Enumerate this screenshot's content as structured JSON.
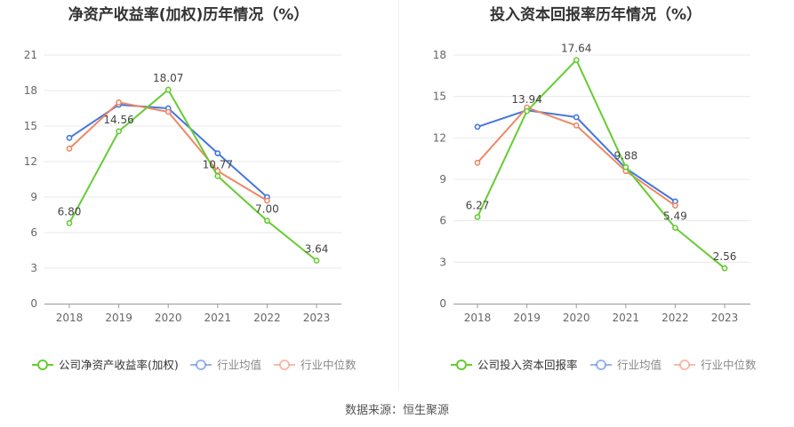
{
  "chart_data": [
    {
      "type": "line",
      "title": "净资产收益率(加权)历年情况（%）",
      "categories": [
        "2018",
        "2019",
        "2020",
        "2021",
        "2022",
        "2023"
      ],
      "ylim": [
        0,
        21
      ],
      "yticks": [
        0,
        3,
        6,
        9,
        12,
        15,
        18,
        21
      ],
      "grid": true,
      "legend_position": "bottom",
      "series": [
        {
          "name": "公司净资产收益率(加权)",
          "color": "#66cc33",
          "labeled": true,
          "values": [
            6.8,
            14.56,
            18.07,
            10.77,
            7.0,
            3.64
          ],
          "labels": [
            "6.80",
            "14.56",
            "18.07",
            "10.77",
            "7.00",
            "3.64"
          ]
        },
        {
          "name": "行业均值",
          "color": "#4477dd",
          "labeled": false,
          "values": [
            14.0,
            16.8,
            16.5,
            12.7,
            9.0,
            null
          ]
        },
        {
          "name": "行业中位数",
          "color": "#ee8866",
          "labeled": false,
          "values": [
            13.1,
            17.0,
            16.2,
            11.2,
            8.7,
            null
          ]
        }
      ]
    },
    {
      "type": "line",
      "title": "投入资本回报率历年情况（%）",
      "categories": [
        "2018",
        "2019",
        "2020",
        "2021",
        "2022",
        "2023"
      ],
      "ylim": [
        0,
        18
      ],
      "yticks": [
        0,
        3,
        6,
        9,
        12,
        15,
        18
      ],
      "grid": true,
      "legend_position": "bottom",
      "series": [
        {
          "name": "公司投入资本回报率",
          "color": "#66cc33",
          "labeled": true,
          "values": [
            6.27,
            13.94,
            17.64,
            9.88,
            5.49,
            2.56
          ],
          "labels": [
            "6.27",
            "13.94",
            "17.64",
            "9.88",
            "5.49",
            "2.56"
          ]
        },
        {
          "name": "行业均值",
          "color": "#4477dd",
          "labeled": false,
          "values": [
            12.8,
            14.0,
            13.5,
            9.8,
            7.4,
            null
          ]
        },
        {
          "name": "行业中位数",
          "color": "#ee8866",
          "labeled": false,
          "values": [
            10.2,
            14.2,
            12.9,
            9.6,
            7.1,
            null
          ]
        }
      ]
    }
  ],
  "source": "数据来源：恒生聚源"
}
